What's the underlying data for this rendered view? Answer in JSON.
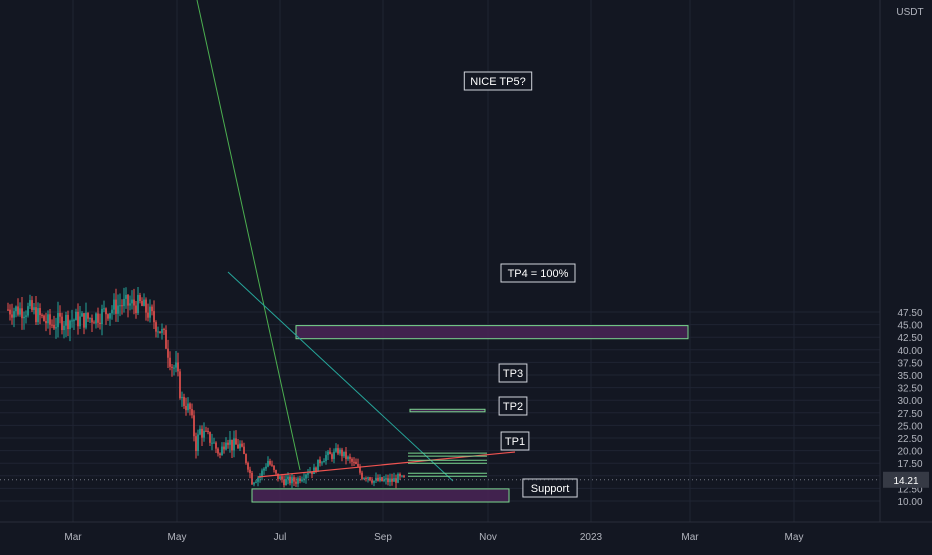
{
  "chart_data": {
    "type": "candlestick",
    "currency_label": "USDT",
    "current_price": 14.21,
    "current_price_label": "14.21",
    "y_ticks": [
      "10.00",
      "12.50",
      "15.00",
      "17.50",
      "20.00",
      "22.50",
      "25.00",
      "27.50",
      "30.00",
      "32.50",
      "35.00",
      "37.50",
      "40.00",
      "42.50",
      "45.00",
      "47.50"
    ],
    "x_ticks": [
      "Mar",
      "May",
      "Jul",
      "Sep",
      "Nov",
      "2023",
      "Mar",
      "May"
    ],
    "zones": [
      {
        "label": "NICE TP5?",
        "range": [
          42.2,
          44.8
        ]
      },
      {
        "label": "TP4 = 100%",
        "range": [
          27.7,
          28.2
        ]
      },
      {
        "label": "Support",
        "range": [
          9.8,
          12.4
        ]
      }
    ],
    "levels": [
      {
        "label": "TP3",
        "price": 19.2
      },
      {
        "label": "TP2",
        "price": 17.8
      },
      {
        "label": "TP1",
        "price": 15.2
      }
    ],
    "colors": {
      "background": "#131722",
      "bullish": "#26a69a",
      "bearish": "#ef5350",
      "zone_fill": "#4a2456",
      "zone_border": "#7bd88f",
      "level_line": "#7bd88f",
      "trend_green": "#4caf50",
      "trend_teal": "#26a69a",
      "trend_red": "#ef5350",
      "price_badge": "#363a45"
    }
  }
}
